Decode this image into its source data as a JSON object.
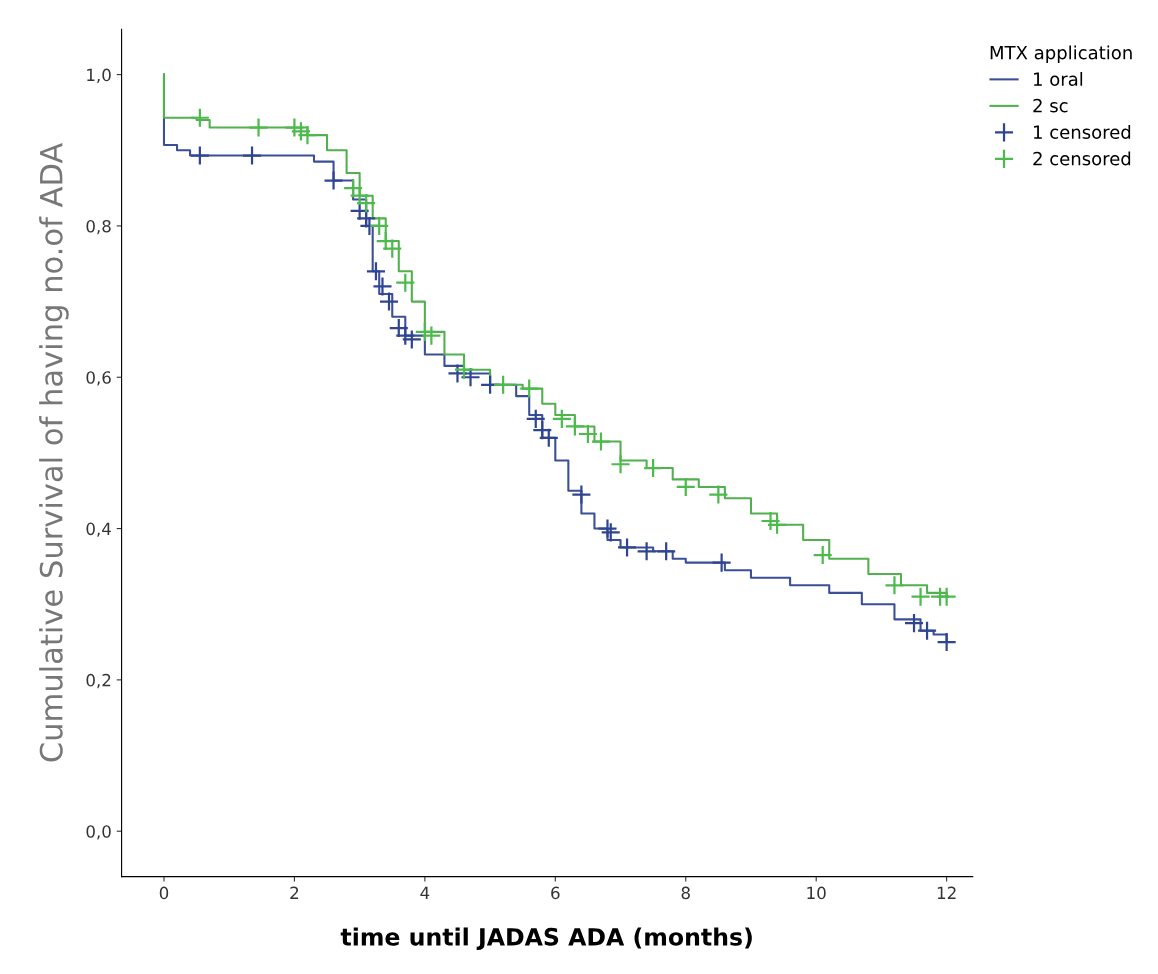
{
  "chart_data": {
    "type": "step",
    "xlabel": "time until JADAS ADA (months)",
    "ylabel": "Cumulative Survival of having no.of ADA",
    "legend_title": "MTX application",
    "legend": "top right",
    "grid": false,
    "xlim": [
      -0.65,
      12.4
    ],
    "xticks": [
      0,
      2,
      4,
      6,
      8,
      10,
      12
    ],
    "ylim": [
      -0.06,
      1.06
    ],
    "yticks": [
      {
        "value": 0,
        "label": "0,0"
      },
      {
        "value": 0.2,
        "label": "0,2"
      },
      {
        "value": 0.4,
        "label": "0,4"
      },
      {
        "value": 0.6,
        "label": "0,6"
      },
      {
        "value": 0.8,
        "label": "0,8"
      },
      {
        "value": 1.0,
        "label": "1,0"
      }
    ],
    "series": [
      {
        "name": "1 oral",
        "color": "#3b4f96",
        "x": [
          0,
          0,
          0.2,
          0.4,
          2.3,
          2.6,
          2.9,
          3.1,
          3.2,
          3.3,
          3.5,
          3.7,
          4.0,
          4.3,
          4.6,
          5.0,
          5.4,
          5.6,
          5.8,
          6.0,
          6.2,
          6.4,
          6.6,
          6.8,
          7.0,
          7.5,
          7.8,
          8.0,
          8.6,
          9.0,
          9.6,
          10.2,
          10.7,
          11.2,
          11.6,
          11.8,
          12.0
        ],
        "values": [
          1.0,
          0.907,
          0.9,
          0.893,
          0.885,
          0.86,
          0.835,
          0.8,
          0.74,
          0.71,
          0.68,
          0.655,
          0.63,
          0.615,
          0.605,
          0.59,
          0.575,
          0.55,
          0.52,
          0.49,
          0.45,
          0.42,
          0.4,
          0.385,
          0.375,
          0.37,
          0.36,
          0.355,
          0.345,
          0.335,
          0.325,
          0.315,
          0.3,
          0.28,
          0.265,
          0.26,
          0.25
        ]
      },
      {
        "name": "2 sc",
        "color": "#52b04f",
        "x": [
          0,
          0,
          0.5,
          0.7,
          2.2,
          2.5,
          2.8,
          3.0,
          3.2,
          3.4,
          3.6,
          3.8,
          4.0,
          4.3,
          4.6,
          5.0,
          5.5,
          5.8,
          6.0,
          6.3,
          6.6,
          7.0,
          7.4,
          7.8,
          8.2,
          8.6,
          9.0,
          9.4,
          9.8,
          10.2,
          10.8,
          11.3,
          11.7,
          12.0
        ],
        "values": [
          1.0,
          0.943,
          0.94,
          0.93,
          0.92,
          0.9,
          0.87,
          0.84,
          0.81,
          0.78,
          0.74,
          0.7,
          0.66,
          0.63,
          0.61,
          0.59,
          0.585,
          0.565,
          0.55,
          0.535,
          0.515,
          0.49,
          0.48,
          0.465,
          0.455,
          0.44,
          0.42,
          0.405,
          0.385,
          0.36,
          0.34,
          0.325,
          0.315,
          0.31
        ]
      },
      {
        "name": "1 censored",
        "type": "scatter",
        "marker": "cross",
        "color": "#2f4592",
        "x": [
          0.55,
          1.35,
          2.6,
          3.0,
          3.1,
          3.15,
          3.25,
          3.35,
          3.45,
          3.6,
          3.7,
          3.8,
          4.5,
          4.7,
          5.0,
          5.7,
          5.8,
          5.9,
          6.4,
          6.8,
          6.85,
          7.1,
          7.4,
          7.7,
          8.55,
          11.5,
          11.7,
          12.0
        ],
        "values": [
          0.893,
          0.893,
          0.86,
          0.82,
          0.81,
          0.8,
          0.74,
          0.72,
          0.7,
          0.665,
          0.655,
          0.65,
          0.605,
          0.6,
          0.59,
          0.545,
          0.53,
          0.52,
          0.445,
          0.4,
          0.395,
          0.375,
          0.37,
          0.37,
          0.355,
          0.275,
          0.265,
          0.25
        ]
      },
      {
        "name": "2 censored",
        "type": "scatter",
        "marker": "cross",
        "color": "#4cbb4c",
        "x": [
          0.55,
          1.45,
          2.0,
          2.1,
          2.2,
          2.9,
          3.0,
          3.1,
          3.3,
          3.4,
          3.5,
          3.7,
          4.0,
          4.1,
          4.6,
          5.2,
          5.6,
          6.1,
          6.3,
          6.5,
          6.7,
          7.0,
          7.5,
          8.0,
          8.5,
          9.3,
          9.4,
          10.1,
          11.2,
          11.6,
          11.9,
          12.0
        ],
        "values": [
          0.943,
          0.93,
          0.93,
          0.925,
          0.92,
          0.85,
          0.84,
          0.83,
          0.8,
          0.78,
          0.77,
          0.725,
          0.66,
          0.655,
          0.61,
          0.59,
          0.585,
          0.545,
          0.535,
          0.525,
          0.515,
          0.485,
          0.48,
          0.455,
          0.445,
          0.41,
          0.405,
          0.365,
          0.325,
          0.31,
          0.31,
          0.31
        ]
      }
    ]
  }
}
